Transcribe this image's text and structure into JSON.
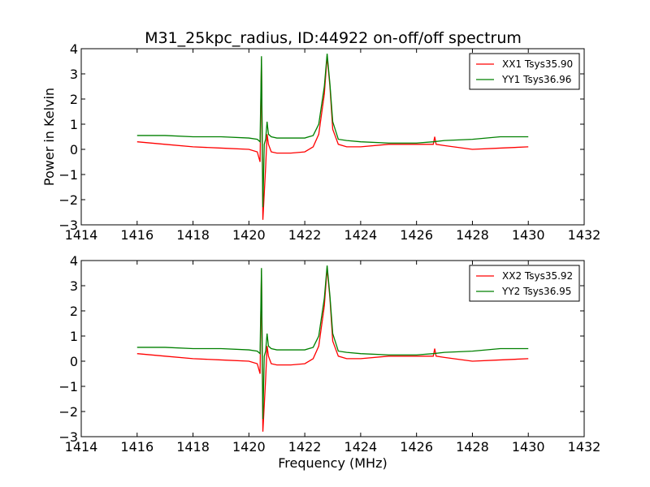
{
  "title": "M31_25kpc_radius, ID:44922 on-off/off spectrum",
  "chart_data": [
    {
      "type": "line",
      "ylabel": "Power in Kelvin",
      "xlabel": "",
      "xlim": [
        1414,
        1432
      ],
      "ylim": [
        -3,
        4
      ],
      "xticks": [
        "1414",
        "1416",
        "1418",
        "1420",
        "1422",
        "1424",
        "1426",
        "1428",
        "1430",
        "1432"
      ],
      "yticks": [
        "−3",
        "−2",
        "−1",
        "0",
        "1",
        "2",
        "3",
        "4"
      ],
      "legend_position": "top-right",
      "series": [
        {
          "name": "XX1 Tsys35.90",
          "color": "#ff0000",
          "x": [
            1416.0,
            1417.0,
            1418.0,
            1419.0,
            1420.0,
            1420.3,
            1420.4,
            1420.45,
            1420.5,
            1420.6,
            1420.65,
            1420.7,
            1420.8,
            1421.0,
            1421.5,
            1422.0,
            1422.3,
            1422.5,
            1422.7,
            1422.8,
            1422.9,
            1423.0,
            1423.2,
            1423.5,
            1424.0,
            1425.0,
            1426.0,
            1426.6,
            1426.65,
            1426.7,
            1427.0,
            1428.0,
            1429.0,
            1430.0
          ],
          "y": [
            0.3,
            0.2,
            0.1,
            0.05,
            0.0,
            -0.1,
            -0.5,
            3.6,
            -2.8,
            -0.7,
            0.6,
            0.2,
            -0.1,
            -0.15,
            -0.15,
            -0.1,
            0.1,
            0.6,
            2.2,
            3.7,
            2.5,
            0.8,
            0.2,
            0.1,
            0.1,
            0.2,
            0.2,
            0.2,
            0.5,
            0.2,
            0.15,
            0.0,
            0.05,
            0.1
          ]
        },
        {
          "name": "YY1 Tsys36.96",
          "color": "#008000",
          "x": [
            1416.0,
            1417.0,
            1418.0,
            1419.0,
            1420.0,
            1420.3,
            1420.4,
            1420.45,
            1420.5,
            1420.55,
            1420.6,
            1420.65,
            1420.7,
            1420.8,
            1421.0,
            1421.5,
            1422.0,
            1422.3,
            1422.5,
            1422.7,
            1422.8,
            1422.9,
            1423.0,
            1423.2,
            1423.5,
            1424.0,
            1425.0,
            1426.0,
            1426.6,
            1427.0,
            1428.0,
            1429.0,
            1430.0
          ],
          "y": [
            0.55,
            0.55,
            0.5,
            0.5,
            0.45,
            0.4,
            0.3,
            3.7,
            -2.3,
            0.2,
            0.4,
            1.1,
            0.6,
            0.5,
            0.45,
            0.45,
            0.45,
            0.55,
            1.0,
            2.5,
            3.8,
            2.6,
            1.1,
            0.4,
            0.35,
            0.3,
            0.25,
            0.25,
            0.3,
            0.35,
            0.4,
            0.5,
            0.5
          ]
        }
      ]
    },
    {
      "type": "line",
      "ylabel": "",
      "xlabel": "Frequency (MHz)",
      "xlim": [
        1414,
        1432
      ],
      "ylim": [
        -3,
        4
      ],
      "xticks": [
        "1414",
        "1416",
        "1418",
        "1420",
        "1422",
        "1424",
        "1426",
        "1428",
        "1430",
        "1432"
      ],
      "yticks": [
        "−3",
        "−2",
        "−1",
        "0",
        "1",
        "2",
        "3",
        "4"
      ],
      "legend_position": "top-right",
      "series": [
        {
          "name": "XX2 Tsys35.92",
          "color": "#ff0000",
          "x": [
            1416.0,
            1417.0,
            1418.0,
            1419.0,
            1420.0,
            1420.3,
            1420.4,
            1420.45,
            1420.5,
            1420.6,
            1420.65,
            1420.7,
            1420.8,
            1421.0,
            1421.5,
            1422.0,
            1422.3,
            1422.5,
            1422.7,
            1422.8,
            1422.9,
            1423.0,
            1423.2,
            1423.5,
            1424.0,
            1425.0,
            1426.0,
            1426.6,
            1426.65,
            1426.7,
            1427.0,
            1428.0,
            1429.0,
            1430.0
          ],
          "y": [
            0.3,
            0.2,
            0.1,
            0.05,
            0.0,
            -0.1,
            -0.5,
            3.6,
            -2.8,
            -0.7,
            0.6,
            0.2,
            -0.1,
            -0.15,
            -0.15,
            -0.1,
            0.1,
            0.6,
            2.2,
            3.7,
            2.5,
            0.8,
            0.2,
            0.1,
            0.1,
            0.2,
            0.2,
            0.2,
            0.5,
            0.2,
            0.15,
            0.0,
            0.05,
            0.1
          ]
        },
        {
          "name": "YY2 Tsys36.95",
          "color": "#008000",
          "x": [
            1416.0,
            1417.0,
            1418.0,
            1419.0,
            1420.0,
            1420.3,
            1420.4,
            1420.45,
            1420.5,
            1420.55,
            1420.6,
            1420.65,
            1420.7,
            1420.8,
            1421.0,
            1421.5,
            1422.0,
            1422.3,
            1422.5,
            1422.7,
            1422.8,
            1422.9,
            1423.0,
            1423.2,
            1423.5,
            1424.0,
            1425.0,
            1426.0,
            1426.6,
            1427.0,
            1428.0,
            1429.0,
            1430.0
          ],
          "y": [
            0.55,
            0.55,
            0.5,
            0.5,
            0.45,
            0.4,
            0.3,
            3.7,
            -2.3,
            0.2,
            0.4,
            1.1,
            0.6,
            0.5,
            0.45,
            0.45,
            0.45,
            0.55,
            1.0,
            2.5,
            3.8,
            2.6,
            1.1,
            0.4,
            0.35,
            0.3,
            0.25,
            0.25,
            0.3,
            0.35,
            0.4,
            0.5,
            0.5
          ]
        }
      ]
    }
  ]
}
